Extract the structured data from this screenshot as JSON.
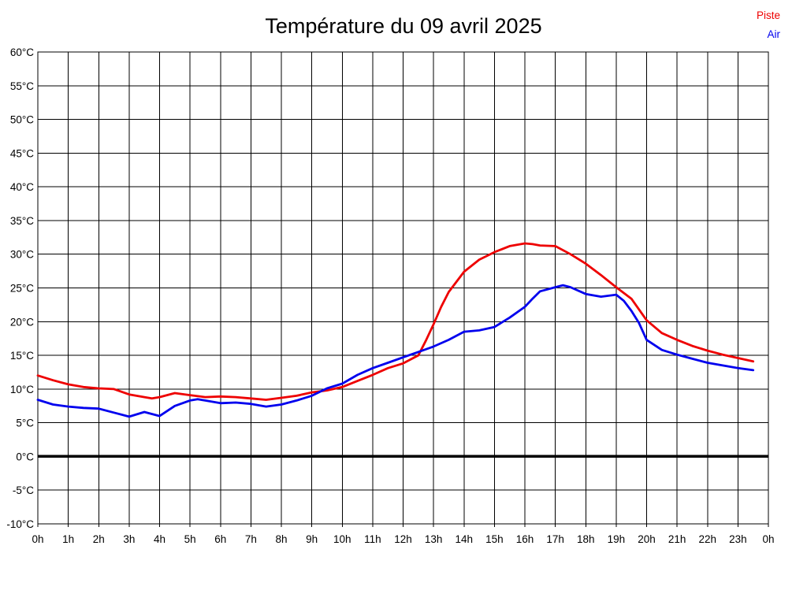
{
  "chart_data": {
    "type": "line",
    "title": "Température du 09 avril 2025",
    "x_unit": "hours",
    "y_unit": "°C",
    "xlim": [
      0,
      24
    ],
    "ylim": [
      -10,
      60
    ],
    "y_step": 5,
    "grid": true,
    "zero_line": true,
    "legend_position": "top-right",
    "x_tick_labels": [
      "0h",
      "1h",
      "2h",
      "3h",
      "4h",
      "5h",
      "6h",
      "7h",
      "8h",
      "9h",
      "10h",
      "11h",
      "12h",
      "13h",
      "14h",
      "15h",
      "16h",
      "17h",
      "18h",
      "19h",
      "20h",
      "21h",
      "22h",
      "23h",
      "0h"
    ],
    "y_tick_labels": [
      "60°C",
      "55°C",
      "50°C",
      "45°C",
      "40°C",
      "35°C",
      "30°C",
      "25°C",
      "20°C",
      "15°C",
      "10°C",
      "5°C",
      "0°C",
      "-5°C",
      "-10°C"
    ],
    "series": [
      {
        "name": "Piste",
        "color": "#ee0000",
        "points": [
          [
            0,
            12.0
          ],
          [
            0.5,
            11.3
          ],
          [
            1,
            10.7
          ],
          [
            1.5,
            10.3
          ],
          [
            2,
            10.1
          ],
          [
            2.5,
            10.0
          ],
          [
            3,
            9.2
          ],
          [
            3.5,
            8.8
          ],
          [
            3.75,
            8.6
          ],
          [
            4,
            8.8
          ],
          [
            4.5,
            9.4
          ],
          [
            5,
            9.1
          ],
          [
            5.5,
            8.8
          ],
          [
            6,
            8.9
          ],
          [
            6.5,
            8.8
          ],
          [
            7,
            8.6
          ],
          [
            7.5,
            8.4
          ],
          [
            8,
            8.7
          ],
          [
            8.5,
            9.0
          ],
          [
            9,
            9.5
          ],
          [
            9.5,
            9.8
          ],
          [
            10,
            10.3
          ],
          [
            10.5,
            11.2
          ],
          [
            11,
            12.1
          ],
          [
            11.5,
            13.1
          ],
          [
            12,
            13.8
          ],
          [
            12.5,
            15.0
          ],
          [
            12.75,
            17.2
          ],
          [
            13,
            19.6
          ],
          [
            13.25,
            22.2
          ],
          [
            13.5,
            24.4
          ],
          [
            14,
            27.4
          ],
          [
            14.5,
            29.2
          ],
          [
            15,
            30.3
          ],
          [
            15.5,
            31.2
          ],
          [
            16,
            31.6
          ],
          [
            16.25,
            31.5
          ],
          [
            16.5,
            31.3
          ],
          [
            17,
            31.2
          ],
          [
            17.5,
            30.0
          ],
          [
            18,
            28.6
          ],
          [
            18.5,
            26.9
          ],
          [
            19,
            25.1
          ],
          [
            19.5,
            23.4
          ],
          [
            20,
            20.2
          ],
          [
            20.5,
            18.3
          ],
          [
            21,
            17.3
          ],
          [
            21.5,
            16.4
          ],
          [
            22,
            15.7
          ],
          [
            22.5,
            15.1
          ],
          [
            23,
            14.6
          ],
          [
            23.5,
            14.1
          ]
        ]
      },
      {
        "name": "Air",
        "color": "#0000ee",
        "points": [
          [
            0,
            8.4
          ],
          [
            0.5,
            7.7
          ],
          [
            1,
            7.4
          ],
          [
            1.5,
            7.2
          ],
          [
            2,
            7.1
          ],
          [
            2.5,
            6.5
          ],
          [
            3,
            5.9
          ],
          [
            3.5,
            6.6
          ],
          [
            4,
            6.0
          ],
          [
            4.5,
            7.5
          ],
          [
            5,
            8.3
          ],
          [
            5.25,
            8.5
          ],
          [
            5.5,
            8.3
          ],
          [
            6,
            7.9
          ],
          [
            6.5,
            8.0
          ],
          [
            7,
            7.8
          ],
          [
            7.5,
            7.4
          ],
          [
            8,
            7.7
          ],
          [
            8.5,
            8.3
          ],
          [
            9,
            9.0
          ],
          [
            9.5,
            10.1
          ],
          [
            10,
            10.8
          ],
          [
            10.5,
            12.1
          ],
          [
            11,
            13.1
          ],
          [
            11.5,
            13.9
          ],
          [
            12,
            14.7
          ],
          [
            12.5,
            15.5
          ],
          [
            13,
            16.3
          ],
          [
            13.5,
            17.3
          ],
          [
            14,
            18.5
          ],
          [
            14.5,
            18.7
          ],
          [
            15,
            19.2
          ],
          [
            15.5,
            20.6
          ],
          [
            16,
            22.2
          ],
          [
            16.25,
            23.4
          ],
          [
            16.5,
            24.5
          ],
          [
            17,
            25.1
          ],
          [
            17.25,
            25.4
          ],
          [
            17.5,
            25.1
          ],
          [
            18,
            24.1
          ],
          [
            18.5,
            23.7
          ],
          [
            19,
            24.0
          ],
          [
            19.25,
            23.1
          ],
          [
            19.5,
            21.6
          ],
          [
            19.75,
            19.8
          ],
          [
            20,
            17.3
          ],
          [
            20.5,
            15.8
          ],
          [
            21,
            15.1
          ],
          [
            21.5,
            14.5
          ],
          [
            22,
            13.9
          ],
          [
            22.5,
            13.5
          ],
          [
            23,
            13.1
          ],
          [
            23.5,
            12.8
          ]
        ]
      }
    ]
  }
}
